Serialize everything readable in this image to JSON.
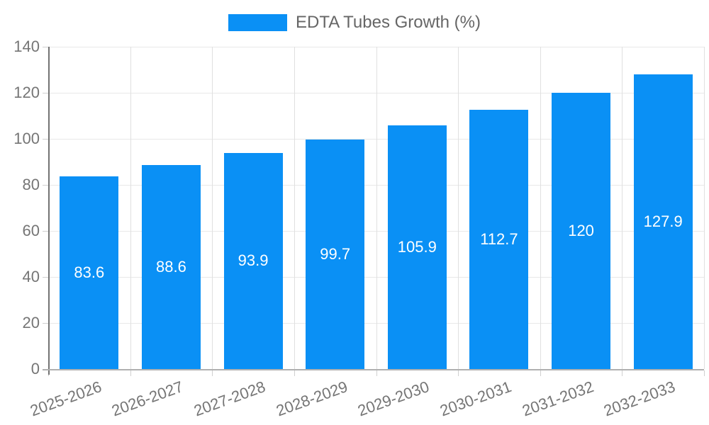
{
  "legend": {
    "label": "EDTA Tubes Growth (%)",
    "swatch_color": "#0a90f5"
  },
  "chart_data": {
    "type": "bar",
    "title": "",
    "categories": [
      "2025-2026",
      "2026-2027",
      "2027-2028",
      "2028-2029",
      "2029-2030",
      "2030-2031",
      "2031-2032",
      "2032-2033"
    ],
    "series": [
      {
        "name": "EDTA Tubes Growth (%)",
        "values": [
          83.6,
          88.6,
          93.9,
          99.7,
          105.9,
          112.7,
          120,
          127.9
        ],
        "value_labels": [
          "83.6",
          "88.6",
          "93.9",
          "99.7",
          "105.9",
          "112.7",
          "120",
          "127.9"
        ]
      }
    ],
    "xlabel": "",
    "ylabel": "",
    "ylim": [
      0,
      140
    ],
    "yticks": [
      0,
      20,
      40,
      60,
      80,
      100,
      120,
      140
    ],
    "ytick_labels": [
      "0",
      "20",
      "40",
      "60",
      "80",
      "100",
      "120",
      "140"
    ],
    "grid": true,
    "legend_position": "top-center",
    "xtick_rotation_deg": 20,
    "value_label_position": "inside-center"
  },
  "colors": {
    "bar": "#0a90f5",
    "bar_value_label": "#ffffff",
    "axis_text": "#757575",
    "legend_text": "#666666",
    "gridline_h": "#e8e8e8",
    "gridline_v": "#e0e0e0",
    "y_axis_line": "#737373",
    "x_axis_line": "#b0b0b0",
    "background": "#ffffff"
  }
}
